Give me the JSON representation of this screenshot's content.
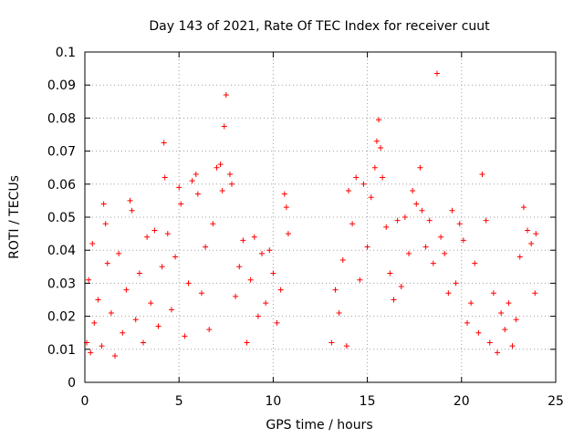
{
  "chart_data": {
    "type": "scatter",
    "title": "Day 143 of 2021, Rate Of TEC Index for receiver cuut",
    "xlabel": "GPS time / hours",
    "ylabel": "ROTI / TECUs",
    "xlim": [
      0,
      25
    ],
    "ylim": [
      0,
      0.1
    ],
    "xticks": [
      0,
      5,
      10,
      15,
      20,
      25
    ],
    "xtick_labels": [
      "0",
      "5",
      "10",
      "15",
      "20",
      "25"
    ],
    "yticks": [
      0,
      0.01,
      0.02,
      0.03,
      0.04,
      0.05,
      0.06,
      0.07,
      0.08,
      0.09,
      0.1
    ],
    "ytick_labels": [
      "0",
      "0.01",
      "0.02",
      "0.03",
      "0.04",
      "0.05",
      "0.06",
      "0.07",
      "0.08",
      "0.09",
      "0.1"
    ],
    "grid": true,
    "marker": "+",
    "color": "#ff0000",
    "data_gap_hours": [
      10.85,
      13.05
    ],
    "series": [
      {
        "name": "ROTI",
        "points": [
          [
            0.1,
            0.012
          ],
          [
            0.2,
            0.031
          ],
          [
            0.3,
            0.009
          ],
          [
            0.4,
            0.042
          ],
          [
            0.5,
            0.018
          ],
          [
            0.7,
            0.025
          ],
          [
            0.9,
            0.011
          ],
          [
            1.0,
            0.054
          ],
          [
            1.1,
            0.048
          ],
          [
            1.2,
            0.036
          ],
          [
            1.4,
            0.021
          ],
          [
            1.6,
            0.008
          ],
          [
            1.8,
            0.039
          ],
          [
            2.0,
            0.015
          ],
          [
            2.2,
            0.028
          ],
          [
            2.4,
            0.055
          ],
          [
            2.5,
            0.052
          ],
          [
            2.7,
            0.019
          ],
          [
            2.9,
            0.033
          ],
          [
            3.1,
            0.012
          ],
          [
            3.3,
            0.044
          ],
          [
            3.5,
            0.024
          ],
          [
            3.7,
            0.046
          ],
          [
            3.9,
            0.017
          ],
          [
            4.1,
            0.035
          ],
          [
            4.2,
            0.0725
          ],
          [
            4.25,
            0.062
          ],
          [
            4.4,
            0.045
          ],
          [
            4.6,
            0.022
          ],
          [
            4.8,
            0.038
          ],
          [
            5.0,
            0.059
          ],
          [
            5.1,
            0.054
          ],
          [
            5.3,
            0.014
          ],
          [
            5.5,
            0.03
          ],
          [
            5.7,
            0.061
          ],
          [
            5.9,
            0.063
          ],
          [
            6.0,
            0.057
          ],
          [
            6.2,
            0.027
          ],
          [
            6.4,
            0.041
          ],
          [
            6.6,
            0.016
          ],
          [
            6.8,
            0.048
          ],
          [
            7.0,
            0.065
          ],
          [
            7.2,
            0.066
          ],
          [
            7.3,
            0.058
          ],
          [
            7.4,
            0.0775
          ],
          [
            7.5,
            0.087
          ],
          [
            7.7,
            0.063
          ],
          [
            7.8,
            0.06
          ],
          [
            8.0,
            0.026
          ],
          [
            8.2,
            0.035
          ],
          [
            8.4,
            0.043
          ],
          [
            8.6,
            0.012
          ],
          [
            8.8,
            0.031
          ],
          [
            9.0,
            0.044
          ],
          [
            9.2,
            0.02
          ],
          [
            9.4,
            0.039
          ],
          [
            9.6,
            0.024
          ],
          [
            9.8,
            0.04
          ],
          [
            10.0,
            0.033
          ],
          [
            10.2,
            0.018
          ],
          [
            10.4,
            0.028
          ],
          [
            10.6,
            0.057
          ],
          [
            10.7,
            0.053
          ],
          [
            10.8,
            0.045
          ],
          [
            13.1,
            0.012
          ],
          [
            13.3,
            0.028
          ],
          [
            13.5,
            0.021
          ],
          [
            13.7,
            0.037
          ],
          [
            13.9,
            0.011
          ],
          [
            14.0,
            0.058
          ],
          [
            14.2,
            0.048
          ],
          [
            14.4,
            0.062
          ],
          [
            14.6,
            0.031
          ],
          [
            14.8,
            0.06
          ],
          [
            15.0,
            0.041
          ],
          [
            15.2,
            0.056
          ],
          [
            15.4,
            0.065
          ],
          [
            15.5,
            0.073
          ],
          [
            15.6,
            0.0795
          ],
          [
            15.7,
            0.071
          ],
          [
            15.8,
            0.062
          ],
          [
            16.0,
            0.047
          ],
          [
            16.2,
            0.033
          ],
          [
            16.4,
            0.025
          ],
          [
            16.6,
            0.049
          ],
          [
            16.8,
            0.029
          ],
          [
            17.0,
            0.05
          ],
          [
            17.2,
            0.039
          ],
          [
            17.4,
            0.058
          ],
          [
            17.6,
            0.054
          ],
          [
            17.8,
            0.065
          ],
          [
            17.9,
            0.052
          ],
          [
            18.1,
            0.041
          ],
          [
            18.3,
            0.049
          ],
          [
            18.5,
            0.036
          ],
          [
            18.7,
            0.0935
          ],
          [
            18.9,
            0.044
          ],
          [
            19.1,
            0.039
          ],
          [
            19.3,
            0.027
          ],
          [
            19.5,
            0.052
          ],
          [
            19.7,
            0.03
          ],
          [
            19.9,
            0.048
          ],
          [
            20.1,
            0.043
          ],
          [
            20.3,
            0.018
          ],
          [
            20.5,
            0.024
          ],
          [
            20.7,
            0.036
          ],
          [
            20.9,
            0.015
          ],
          [
            21.1,
            0.063
          ],
          [
            21.3,
            0.049
          ],
          [
            21.5,
            0.012
          ],
          [
            21.7,
            0.027
          ],
          [
            21.9,
            0.009
          ],
          [
            22.1,
            0.021
          ],
          [
            22.3,
            0.016
          ],
          [
            22.5,
            0.024
          ],
          [
            22.7,
            0.011
          ],
          [
            22.9,
            0.019
          ],
          [
            23.1,
            0.038
          ],
          [
            23.3,
            0.053
          ],
          [
            23.5,
            0.046
          ],
          [
            23.7,
            0.042
          ],
          [
            23.9,
            0.027
          ],
          [
            23.95,
            0.045
          ]
        ]
      }
    ]
  }
}
